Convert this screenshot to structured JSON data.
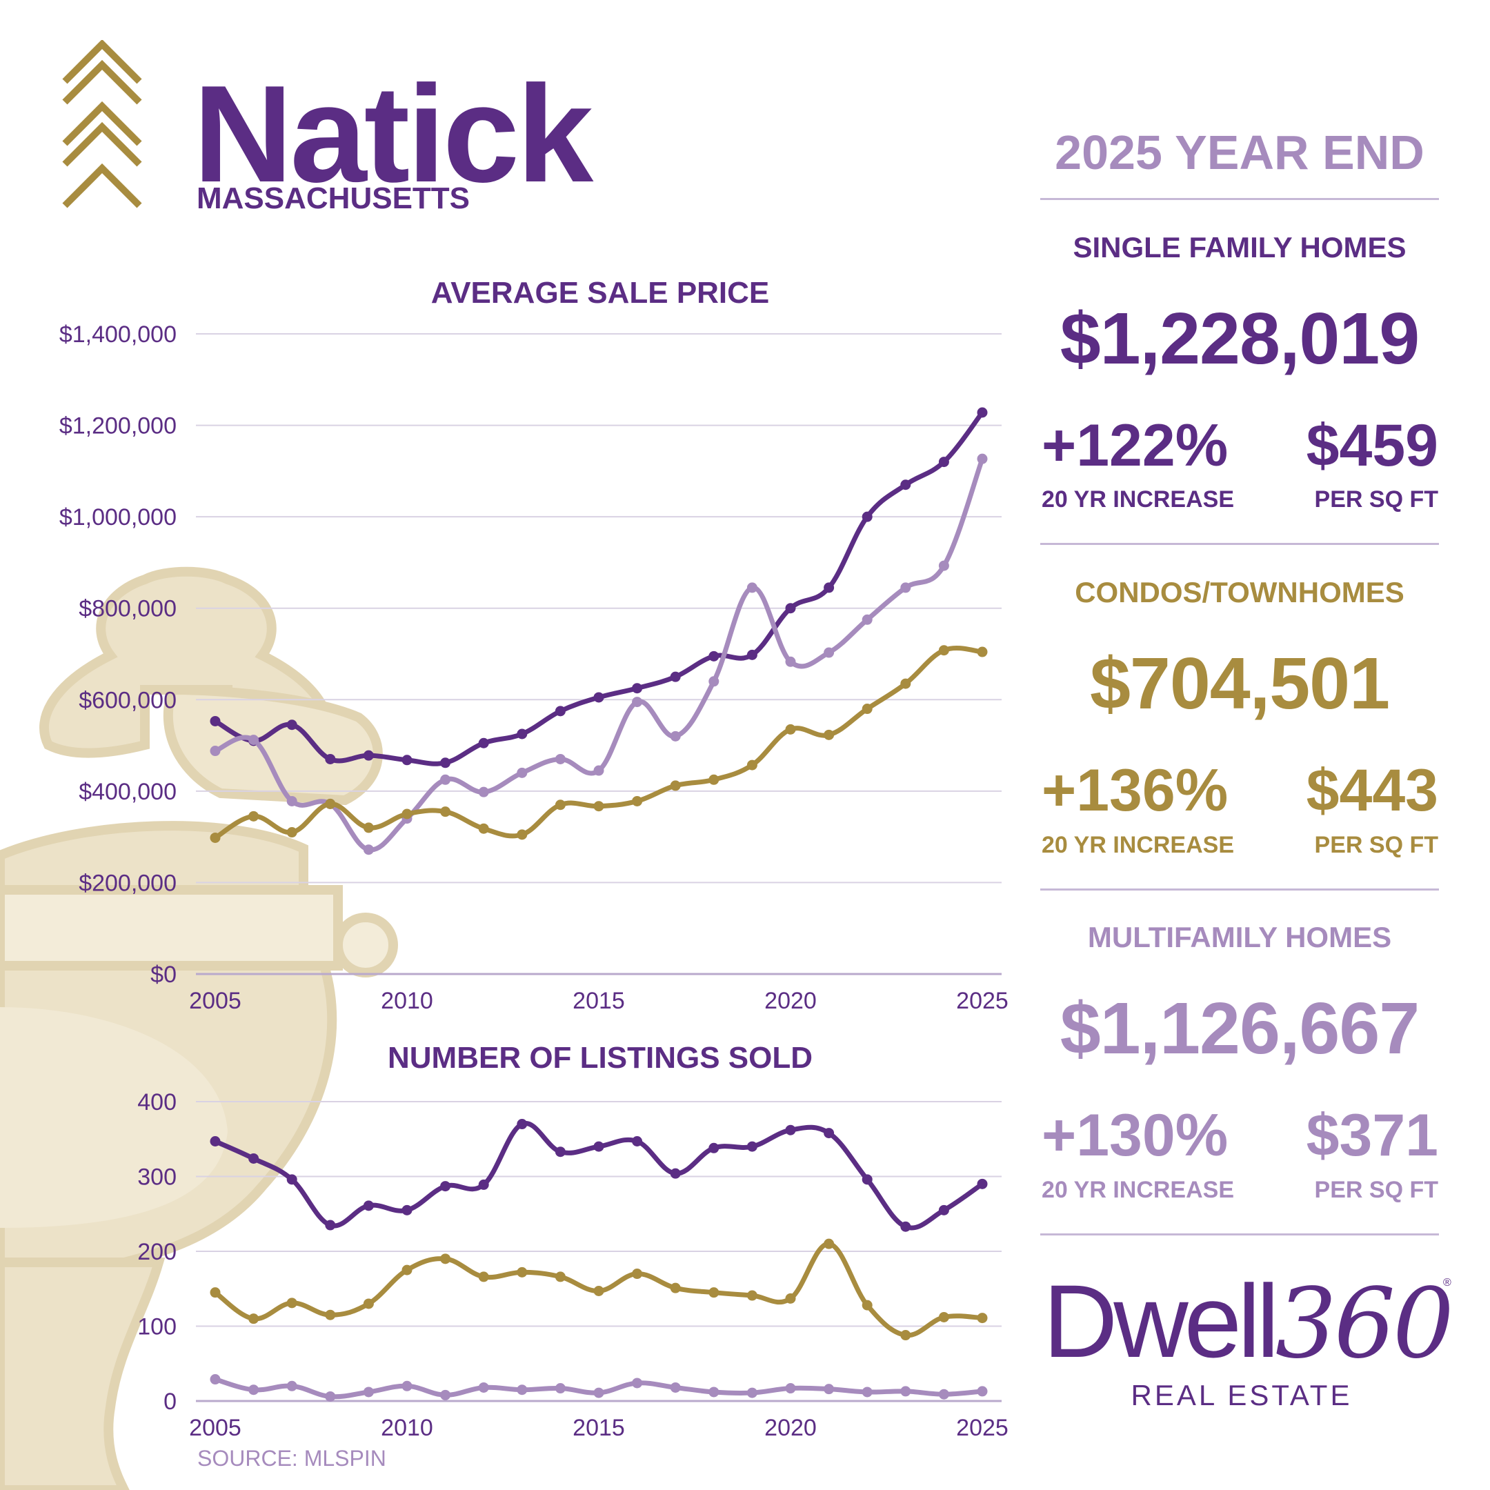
{
  "header": {
    "title": "Natick",
    "subtitle": "MASSACHUSETTS"
  },
  "source": "SOURCE: MLSPIN",
  "colors": {
    "single_family": "#5b2d84",
    "condos": "#a88c3f",
    "multifamily": "#a68bbd",
    "gridline": "#d9d2e3",
    "knocker": "#ece2c8"
  },
  "icons": [
    "chevron-stack-icon",
    "door-knocker-icon"
  ],
  "panel": {
    "year_end": "2025 YEAR END",
    "single": {
      "heading": "SINGLE FAMILY HOMES",
      "price": "$1,228,019",
      "increase": "+122%",
      "increase_label": "20 YR INCREASE",
      "ppsf": "$459",
      "ppsf_label": "PER SQ FT"
    },
    "condo": {
      "heading": "CONDOS/TOWNHOMES",
      "price": "$704,501",
      "increase": "+136%",
      "increase_label": "20 YR INCREASE",
      "ppsf": "$443",
      "ppsf_label": "PER SQ FT"
    },
    "multi": {
      "heading": "MULTIFAMILY HOMES",
      "price": "$1,126,667",
      "increase": "+130%",
      "increase_label": "20 YR INCREASE",
      "ppsf": "$371",
      "ppsf_label": "PER SQ FT"
    }
  },
  "logo": {
    "dwell": "Dwell",
    "num": "360",
    "reg": "®",
    "tagline": "REAL ESTATE"
  },
  "chart_data": [
    {
      "type": "line",
      "title": "AVERAGE SALE PRICE",
      "x": [
        2005,
        2006,
        2007,
        2008,
        2009,
        2010,
        2011,
        2012,
        2013,
        2014,
        2015,
        2016,
        2017,
        2018,
        2019,
        2020,
        2021,
        2022,
        2023,
        2024,
        2025
      ],
      "xticks": [
        "2005",
        "2010",
        "2015",
        "2020",
        "2025"
      ],
      "yticks": [
        "$0",
        "$200,000",
        "$400,000",
        "$600,000",
        "$800,000",
        "$1,000,000",
        "$1,200,000",
        "$1,400,000"
      ],
      "ylim": [
        0,
        1400000
      ],
      "grid": true,
      "series": [
        {
          "key": "single",
          "values": [
            553000,
            510000,
            545000,
            470000,
            478000,
            468000,
            462000,
            505000,
            525000,
            575000,
            605000,
            625000,
            650000,
            695000,
            698000,
            800000,
            845000,
            1000000,
            1070000,
            1120000,
            1228019
          ]
        },
        {
          "key": "multi",
          "values": [
            488000,
            512000,
            378000,
            372000,
            272000,
            340000,
            425000,
            398000,
            440000,
            470000,
            445000,
            595000,
            520000,
            640000,
            845000,
            683000,
            703000,
            775000,
            845000,
            893000,
            1126667
          ]
        },
        {
          "key": "condo",
          "values": [
            298000,
            345000,
            310000,
            372000,
            320000,
            350000,
            355000,
            318000,
            305000,
            370000,
            367000,
            378000,
            412000,
            425000,
            457000,
            535000,
            523000,
            580000,
            635000,
            708000,
            704501
          ]
        }
      ]
    },
    {
      "type": "line",
      "title": "NUMBER OF LISTINGS SOLD",
      "x": [
        2005,
        2006,
        2007,
        2008,
        2009,
        2010,
        2011,
        2012,
        2013,
        2014,
        2015,
        2016,
        2017,
        2018,
        2019,
        2020,
        2021,
        2022,
        2023,
        2024,
        2025
      ],
      "xticks": [
        "2005",
        "2010",
        "2015",
        "2020",
        "2025"
      ],
      "yticks": [
        "0",
        "100",
        "200",
        "300",
        "400"
      ],
      "ylim": [
        0,
        400
      ],
      "grid": true,
      "series": [
        {
          "key": "single",
          "values": [
            347,
            324,
            296,
            235,
            261,
            255,
            287,
            289,
            370,
            333,
            340,
            347,
            304,
            338,
            340,
            362,
            358,
            296,
            233,
            255,
            290
          ]
        },
        {
          "key": "condo",
          "values": [
            145,
            110,
            131,
            115,
            130,
            175,
            190,
            166,
            172,
            166,
            147,
            170,
            151,
            145,
            141,
            137,
            210,
            128,
            88,
            112,
            111
          ]
        },
        {
          "key": "multi",
          "values": [
            29,
            15,
            20,
            6,
            12,
            20,
            8,
            18,
            15,
            17,
            11,
            24,
            18,
            12,
            11,
            17,
            16,
            12,
            13,
            9,
            13
          ]
        }
      ]
    }
  ]
}
